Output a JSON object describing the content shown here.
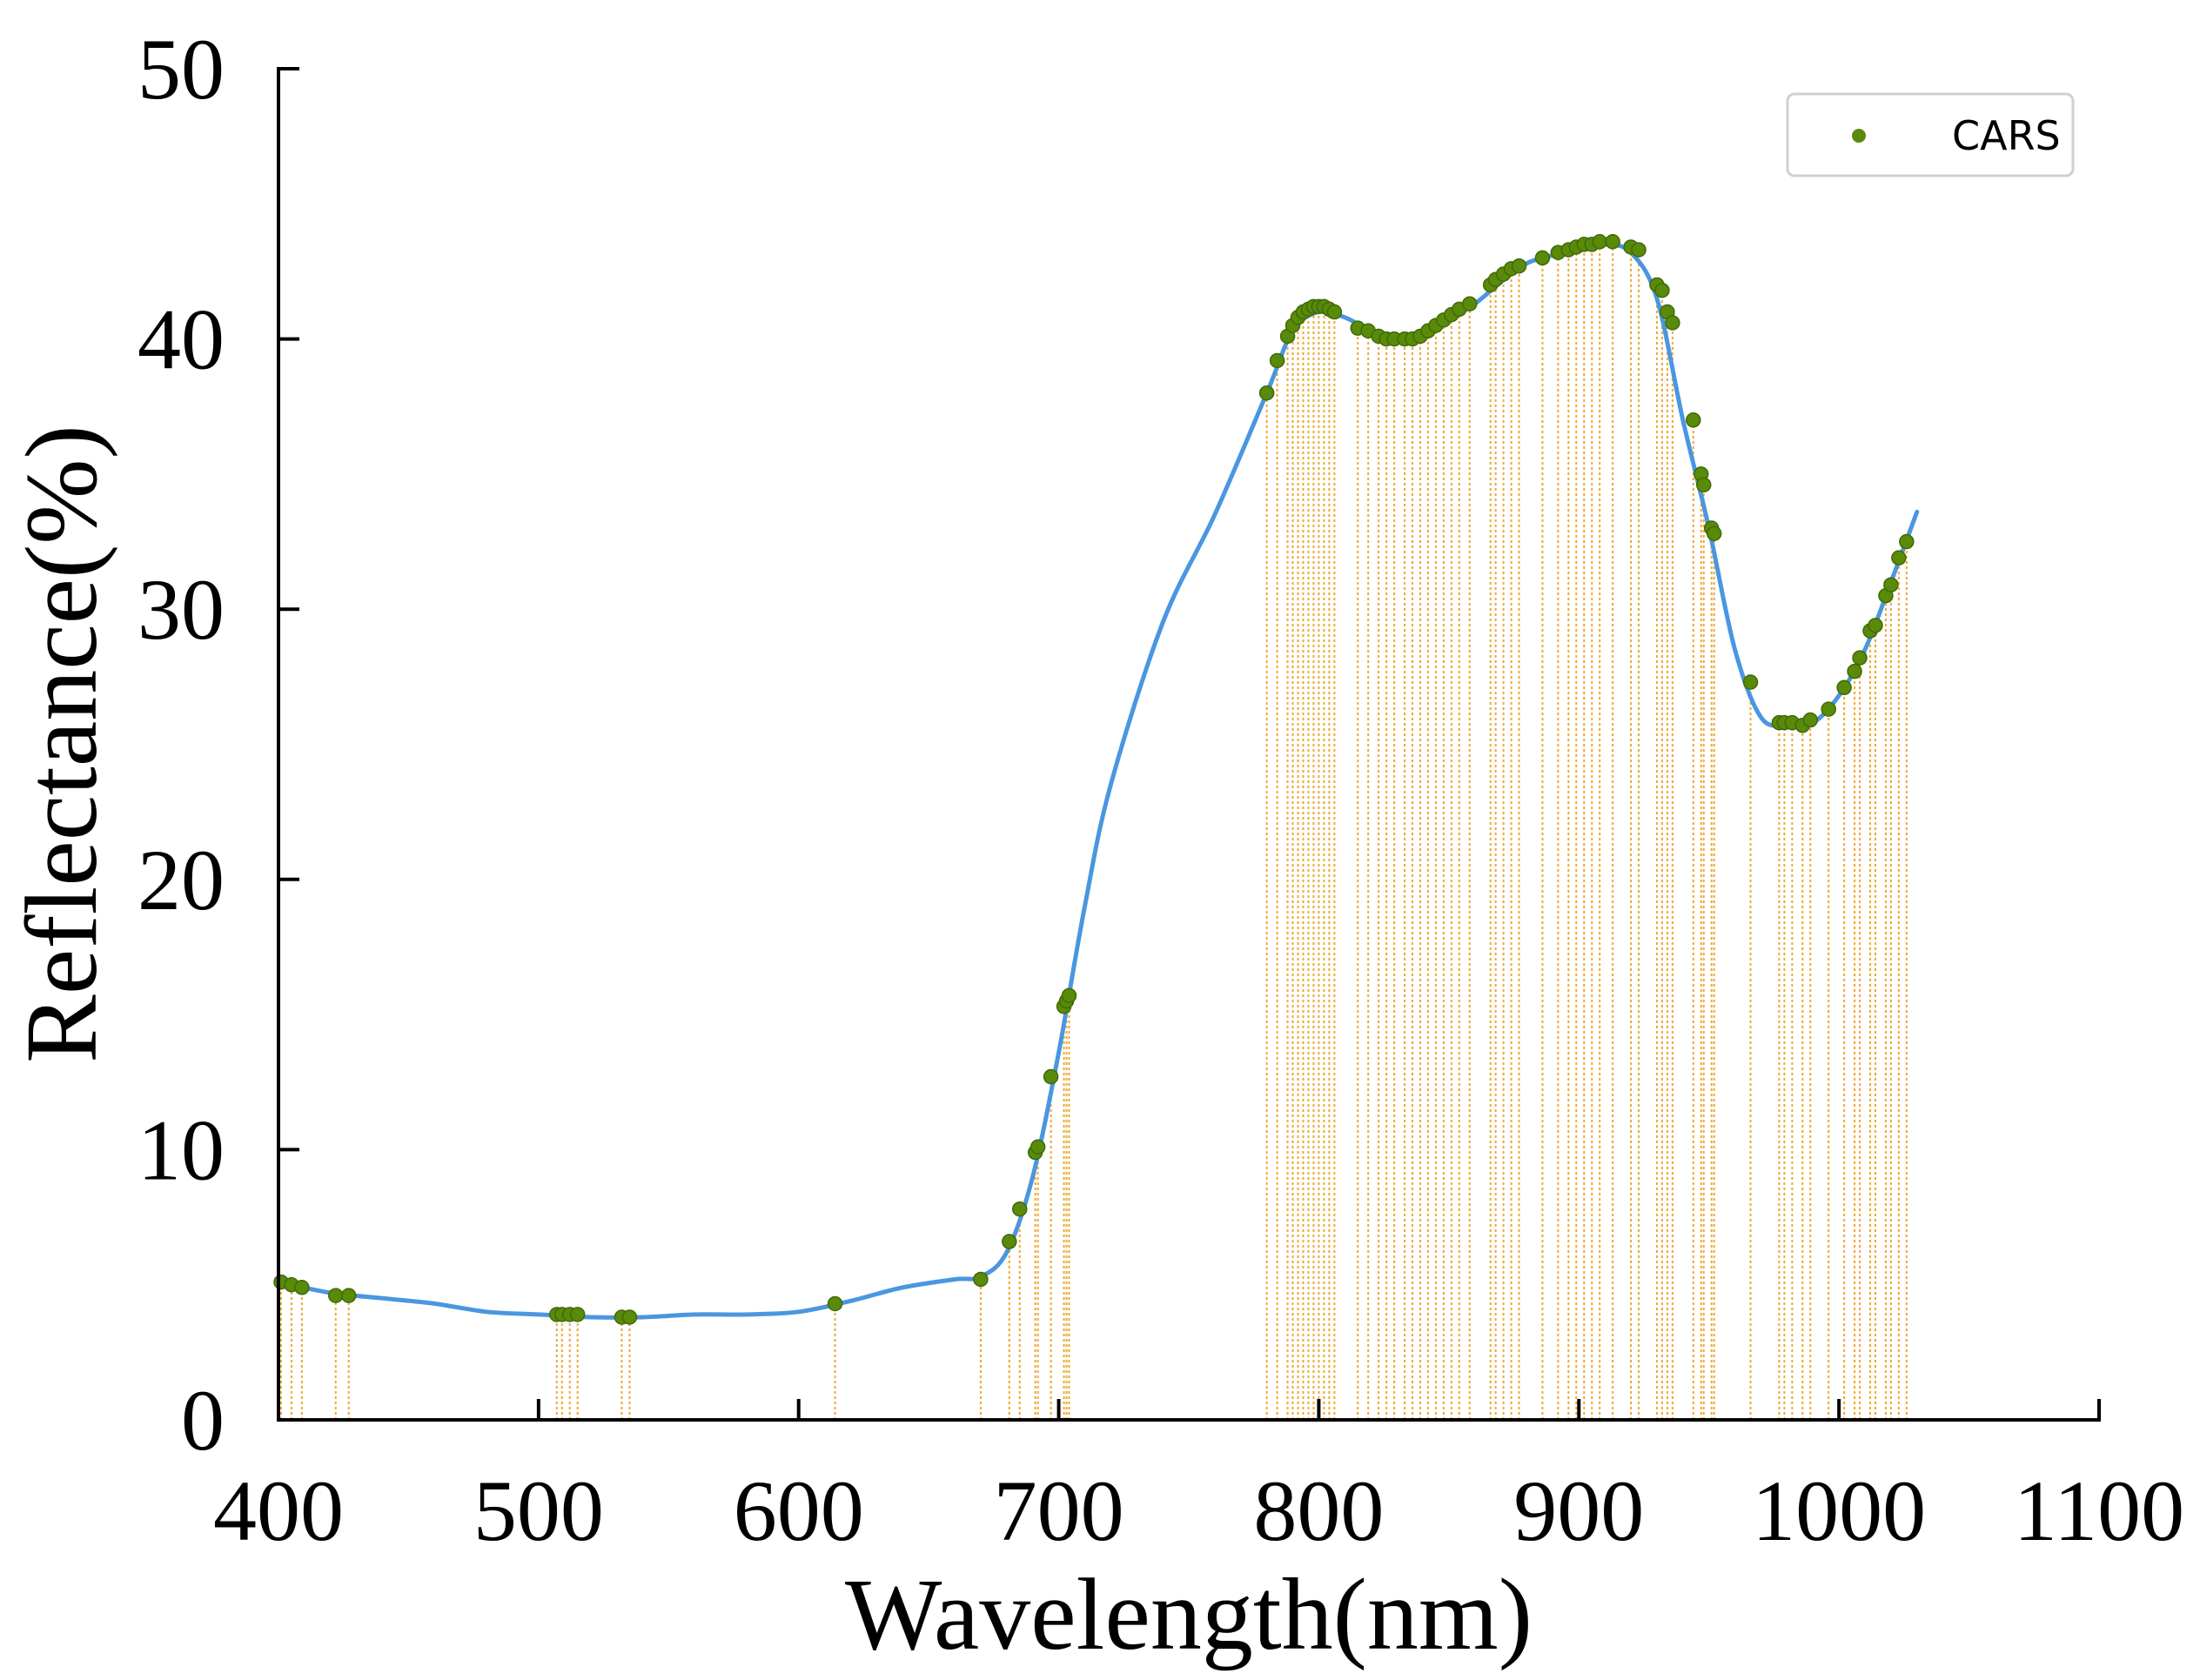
{
  "chart_data": {
    "type": "line",
    "title": "",
    "xlabel": "Wavelength(nm)",
    "ylabel": "Reflectance(%)",
    "xlim": [
      400,
      1100
    ],
    "ylim": [
      0,
      50
    ],
    "x_ticks": [
      400,
      500,
      600,
      700,
      800,
      900,
      1000,
      1100
    ],
    "y_ticks": [
      0,
      10,
      20,
      30,
      40,
      50
    ],
    "grid": false,
    "legend": {
      "position": "top-right",
      "entries": [
        "CARS"
      ]
    },
    "colors": {
      "spectrum": "#4a96e0",
      "markers": "#5a8a0a",
      "marker_edge": "#3f6a06",
      "guides": "#f0a830"
    },
    "series": [
      {
        "type": "line",
        "x": [
          400,
          420,
          440,
          460,
          480,
          500,
          520,
          540,
          560,
          580,
          600,
          620,
          640,
          660,
          670,
          680,
          690,
          700,
          710,
          720,
          740,
          760,
          780,
          790,
          800,
          810,
          820,
          830,
          840,
          850,
          860,
          870,
          880,
          890,
          900,
          910,
          920,
          930,
          940,
          950,
          960,
          970,
          980,
          990,
          1000,
          1010,
          1020,
          1030
        ],
        "values": [
          5.1,
          4.7,
          4.5,
          4.3,
          4.0,
          3.9,
          3.8,
          3.8,
          3.9,
          3.9,
          4.0,
          4.4,
          4.9,
          5.2,
          5.3,
          6.2,
          9.0,
          13.6,
          19.0,
          23.5,
          29.5,
          33.5,
          38.0,
          40.3,
          41.0,
          40.8,
          40.3,
          40.0,
          40.1,
          40.7,
          41.3,
          42.1,
          42.8,
          43.1,
          43.4,
          43.5,
          43.2,
          41.5,
          37.0,
          33.0,
          28.5,
          26.0,
          25.7,
          25.8,
          26.8,
          28.5,
          31.0,
          33.6
        ]
      },
      {
        "type": "scatter",
        "name": "CARS",
        "x": [
          401,
          405,
          409,
          422,
          427,
          507,
          509,
          512,
          515,
          532,
          535,
          614,
          670,
          681,
          685,
          691,
          692,
          697,
          702,
          703,
          704,
          780,
          784,
          788,
          790,
          792,
          794,
          796,
          798,
          800,
          802,
          804,
          806,
          815,
          819,
          823,
          826,
          829,
          833,
          836,
          839,
          842,
          845,
          848,
          851,
          854,
          858,
          866,
          868,
          871,
          874,
          877,
          886,
          892,
          896,
          899,
          902,
          905,
          908,
          913,
          920,
          923,
          930,
          932,
          934,
          936,
          944,
          947,
          948,
          951,
          952,
          966,
          977,
          979,
          982,
          986,
          989,
          996,
          1002,
          1006,
          1008,
          1012,
          1014,
          1018,
          1020,
          1023,
          1026
        ],
        "values": [
          5.1,
          5.0,
          4.9,
          4.6,
          4.6,
          3.9,
          3.9,
          3.9,
          3.9,
          3.8,
          3.8,
          4.3,
          5.2,
          6.6,
          7.8,
          9.9,
          10.1,
          12.7,
          15.3,
          15.5,
          15.7,
          38.0,
          39.2,
          40.1,
          40.5,
          40.8,
          41.0,
          41.1,
          41.2,
          41.2,
          41.2,
          41.1,
          41.0,
          40.4,
          40.3,
          40.1,
          40.0,
          40.0,
          40.0,
          40.0,
          40.1,
          40.3,
          40.5,
          40.7,
          40.9,
          41.1,
          41.3,
          42.0,
          42.2,
          42.4,
          42.6,
          42.7,
          43.0,
          43.2,
          43.3,
          43.4,
          43.5,
          43.5,
          43.6,
          43.6,
          43.4,
          43.3,
          42.0,
          41.8,
          41.0,
          40.6,
          37.0,
          35.0,
          34.6,
          33.0,
          32.8,
          27.3,
          25.8,
          25.8,
          25.8,
          25.7,
          25.9,
          26.3,
          27.1,
          27.7,
          28.2,
          29.2,
          29.4,
          30.5,
          30.9,
          31.9,
          32.5
        ]
      }
    ]
  }
}
